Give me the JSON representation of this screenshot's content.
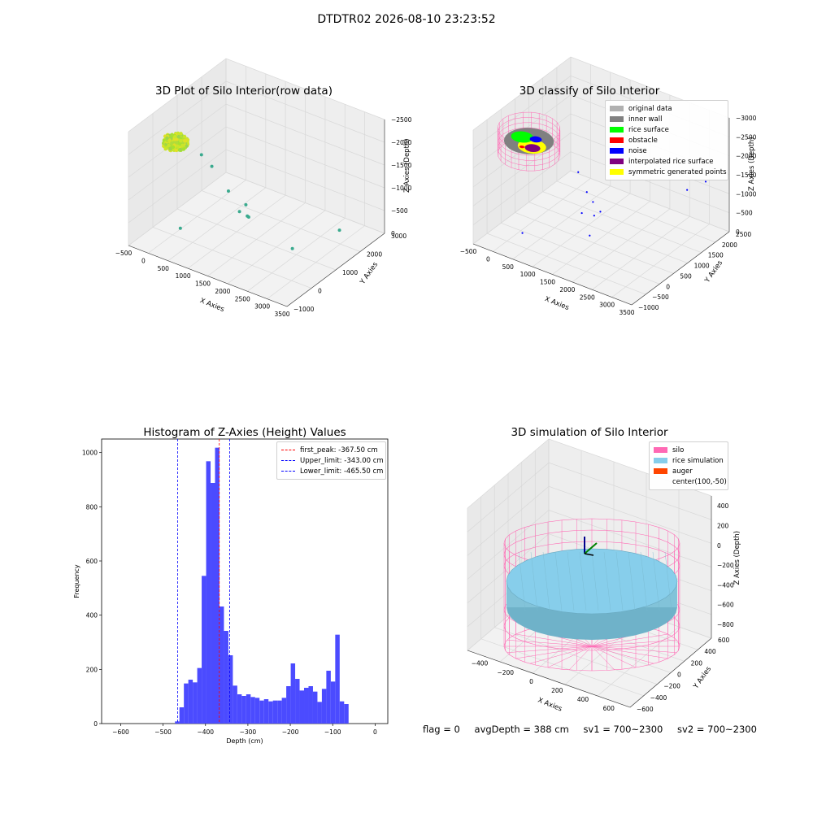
{
  "suptitle": "DTDTR02 2026-08-10 23:23:52",
  "status": {
    "flag": "flag = 0",
    "avg_depth": "avgDepth = 388 cm",
    "sv1": "sv1 = 700~2300",
    "sv2": "sv2 = 700~2300"
  },
  "colors": {
    "hist_bar": "#4b4bff",
    "first_peak": "#ff0000",
    "limits": "#0000ff",
    "silo": "#ff69b4",
    "rice_simulation": "#87ceeb",
    "auger": "#ff4500",
    "original_data": "#b0b0b0",
    "inner_wall": "#808080",
    "rice_surface": "#00ff00",
    "obstacle": "#ff0000",
    "noise": "#0000ff",
    "interpolated_rice_surface": "#800080",
    "symmetric_generated_points": "#ffff00"
  },
  "chart_data": [
    {
      "type": "scatter",
      "title": "3D Plot of Silo Interior(row data)",
      "xlabel": "X Axies",
      "ylabel": "Y Axies",
      "zlabel": "Z Axies (Depth)",
      "xticks": [
        "−500",
        "0",
        "500",
        "1000",
        "1500",
        "2000",
        "2500",
        "3000",
        "3500"
      ],
      "yticks": [
        "−1000",
        "0",
        "1000",
        "2000",
        "3000"
      ],
      "zticks": [
        "0",
        "−500",
        "−1000",
        "−1500",
        "−2000",
        "−2500"
      ],
      "xlim": [
        -700,
        3600
      ],
      "ylim": [
        -1100,
        3200
      ],
      "zlim": [
        -2700,
        100
      ],
      "cluster": {
        "x": [
          -380,
          180
        ],
        "y": [
          -350,
          350
        ],
        "z": [
          -470,
          -340
        ]
      },
      "scattered_points": [
        {
          "x": 480,
          "y": 200,
          "z": -600
        },
        {
          "x": 700,
          "y": 300,
          "z": -850
        },
        {
          "x": 1150,
          "y": 300,
          "z": -1300
        },
        {
          "x": 1500,
          "y": 500,
          "z": -1600
        },
        {
          "x": 1450,
          "y": 300,
          "z": -1700
        },
        {
          "x": 1600,
          "y": 400,
          "z": -1800
        },
        {
          "x": 1700,
          "y": 300,
          "z": -1750
        },
        {
          "x": 400,
          "y": -600,
          "z": -2100
        },
        {
          "x": 2700,
          "y": 600,
          "z": -2300
        },
        {
          "x": 3300,
          "y": 1700,
          "z": -2100
        }
      ]
    },
    {
      "type": "scatter",
      "title": "3D classify of Silo Interior",
      "xlabel": "X Axies",
      "ylabel": "Y Axies",
      "zlabel": "Z Axies (Depth)",
      "xticks": [
        "−500",
        "0",
        "500",
        "1000",
        "1500",
        "2000",
        "2500",
        "3000",
        "3500"
      ],
      "yticks": [
        "−1000",
        "−500",
        "0",
        "500",
        "1000",
        "1500",
        "2000",
        "2500"
      ],
      "zticks": [
        "0",
        "−500",
        "−1000",
        "−1500",
        "−2000",
        "−2500",
        "−3000"
      ],
      "legend": [
        "original data",
        "inner wall",
        "rice surface",
        "obstacle",
        "noise",
        "interpolated rice surface",
        "symmetric generated points"
      ],
      "silo": {
        "cx": 100,
        "cy": -50,
        "r": 700,
        "ztop": 0,
        "zbot": -750
      },
      "noise_points": [
        {
          "x": 1200,
          "y": 300,
          "z": -1000
        },
        {
          "x": 1500,
          "y": 200,
          "z": -1400
        },
        {
          "x": 1600,
          "y": 300,
          "z": -1700
        },
        {
          "x": 1500,
          "y": 0,
          "z": -1900
        },
        {
          "x": 1700,
          "y": 200,
          "z": -2000
        },
        {
          "x": 1800,
          "y": 300,
          "z": -1900
        },
        {
          "x": 1850,
          "y": -200,
          "z": -2300
        },
        {
          "x": 500,
          "y": -900,
          "z": -2400
        },
        {
          "x": 3000,
          "y": 2000,
          "z": -1700
        },
        {
          "x": 3300,
          "y": 2300,
          "z": -1500
        }
      ]
    },
    {
      "type": "bar",
      "title": "Histogram of Z-Axies (Height) Values",
      "xlabel": "Depth (cm)",
      "ylabel": "Frequency",
      "xlim": [
        -645,
        30
      ],
      "ylim": [
        0,
        1050
      ],
      "xticks": [
        "−600",
        "−500",
        "−400",
        "−300",
        "−200",
        "−100",
        "0"
      ],
      "yticks": [
        "0",
        "200",
        "400",
        "600",
        "800",
        "1000"
      ],
      "bin_width": 10.5,
      "bin_start": -472,
      "values": [
        8,
        60,
        148,
        162,
        152,
        205,
        545,
        968,
        888,
        1018,
        432,
        342,
        252,
        140,
        108,
        102,
        108,
        98,
        95,
        85,
        90,
        82,
        85,
        85,
        95,
        138,
        222,
        165,
        122,
        132,
        138,
        118,
        80,
        128,
        195,
        155,
        328,
        82,
        72
      ],
      "vlines": [
        {
          "name": "first_peak",
          "label": "first_peak: -367.50 cm",
          "x": -367.5
        },
        {
          "name": "upper_limit",
          "label": "Upper_limit: -343.00 cm",
          "x": -343.0
        },
        {
          "name": "lower_limit",
          "label": "Lower_limit: -465.50 cm",
          "x": -465.5
        }
      ]
    },
    {
      "type": "surface",
      "title": "3D simulation of Silo Interior",
      "xlabel": "X Axies",
      "ylabel": "Y Axies",
      "zlabel": "Z Axies (Depth)",
      "xticks": [
        "−400",
        "−200",
        "0",
        "200",
        "400",
        "600"
      ],
      "yticks": [
        "−600",
        "−400",
        "−200",
        "0",
        "200",
        "400",
        "600"
      ],
      "zticks": [
        "400",
        "200",
        "0",
        "−200",
        "−400",
        "−600",
        "−800"
      ],
      "legend": [
        "silo",
        "rice simulation",
        "auger",
        "center(100,-50)"
      ],
      "silo": {
        "cx": 100,
        "cy": -50,
        "r": 700,
        "ztop": 400,
        "zbot": -880
      },
      "rice_level": -390
    }
  ]
}
